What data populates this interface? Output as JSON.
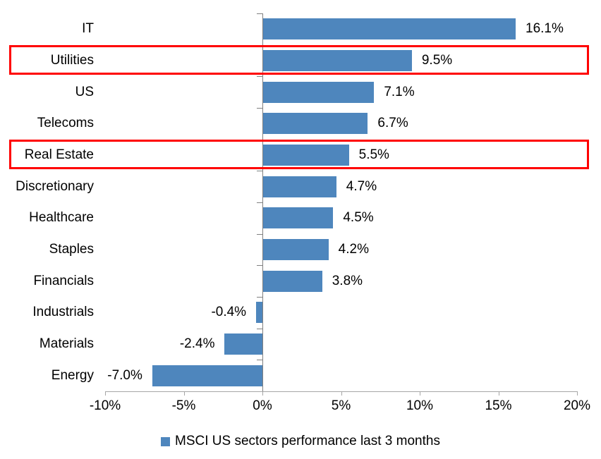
{
  "chart_data": {
    "type": "bar",
    "orientation": "horizontal",
    "legend": "MSCI US sectors performance last 3 months",
    "legend_position": "bottom",
    "grid": false,
    "categories": [
      "IT",
      "Utilities",
      "US",
      "Telecoms",
      "Real Estate",
      "Discretionary",
      "Healthcare",
      "Staples",
      "Financials",
      "Industrials",
      "Materials",
      "Energy"
    ],
    "values": [
      16.1,
      9.5,
      7.1,
      6.7,
      5.5,
      4.7,
      4.5,
      4.2,
      3.8,
      -0.4,
      -2.4,
      -7.0
    ],
    "value_labels": [
      "16.1%",
      "9.5%",
      "7.1%",
      "6.7%",
      "5.5%",
      "4.7%",
      "4.5%",
      "4.2%",
      "3.8%",
      "-0.4%",
      "-2.4%",
      "-7.0%"
    ],
    "highlighted_categories": [
      "Utilities",
      "Real Estate"
    ],
    "xlim": [
      -10,
      20
    ],
    "x_ticks": [
      {
        "v": -10,
        "label": "-10%"
      },
      {
        "v": -5,
        "label": "-5%"
      },
      {
        "v": 0,
        "label": "0%"
      },
      {
        "v": 5,
        "label": "5%"
      },
      {
        "v": 10,
        "label": "10%"
      },
      {
        "v": 15,
        "label": "15%"
      },
      {
        "v": 20,
        "label": "20%"
      }
    ],
    "colors": {
      "bar": "#4E86BD",
      "legend_marker": "#4E86BD",
      "highlight_box": "#FF0000",
      "axis_x": "#A6A6A6",
      "axis_y": "#808080",
      "text": "#000000"
    }
  }
}
